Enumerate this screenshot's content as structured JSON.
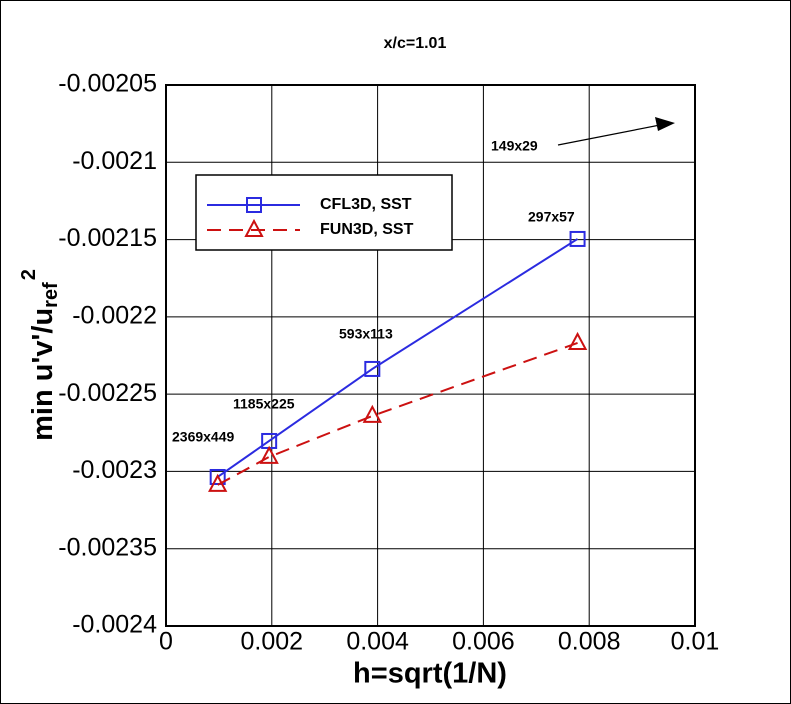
{
  "chart_data": {
    "type": "line",
    "title": "x/c=1.01",
    "x_label": "h=sqrt(1/N)",
    "y_label": {
      "main": "min u'v'/u",
      "sub": "ref",
      "sup": "2"
    },
    "series": [
      {
        "name": "CFL3D, SST",
        "color": "#2b2be0",
        "marker": "square",
        "dash": "none",
        "x": [
          0.000977,
          0.00195,
          0.0039,
          0.00778
        ],
        "values": [
          -0.0023036,
          -0.0022803,
          -0.0022337,
          -0.0021496
        ]
      },
      {
        "name": "FUN3D, SST",
        "color": "#cc1111",
        "marker": "triangle",
        "dash": "14 8",
        "x": [
          0.000977,
          0.00195,
          0.0039,
          0.00778
        ],
        "values": [
          -0.0023087,
          -0.0022906,
          -0.0022641,
          -0.0022169
        ]
      }
    ],
    "annotations": [
      "2369x449",
      "1185x225",
      "593x113",
      "297x57",
      "149x29"
    ],
    "xlim": [
      0,
      0.01
    ],
    "xticks": [
      0,
      0.002,
      0.004,
      0.006,
      0.008,
      0.01
    ],
    "ylim": [
      -0.0024,
      -0.00205
    ],
    "yticks": [
      -0.00205,
      -0.0021,
      -0.00215,
      -0.0022,
      -0.00225,
      -0.0023,
      -0.00235,
      -0.0024
    ],
    "grid": true
  }
}
